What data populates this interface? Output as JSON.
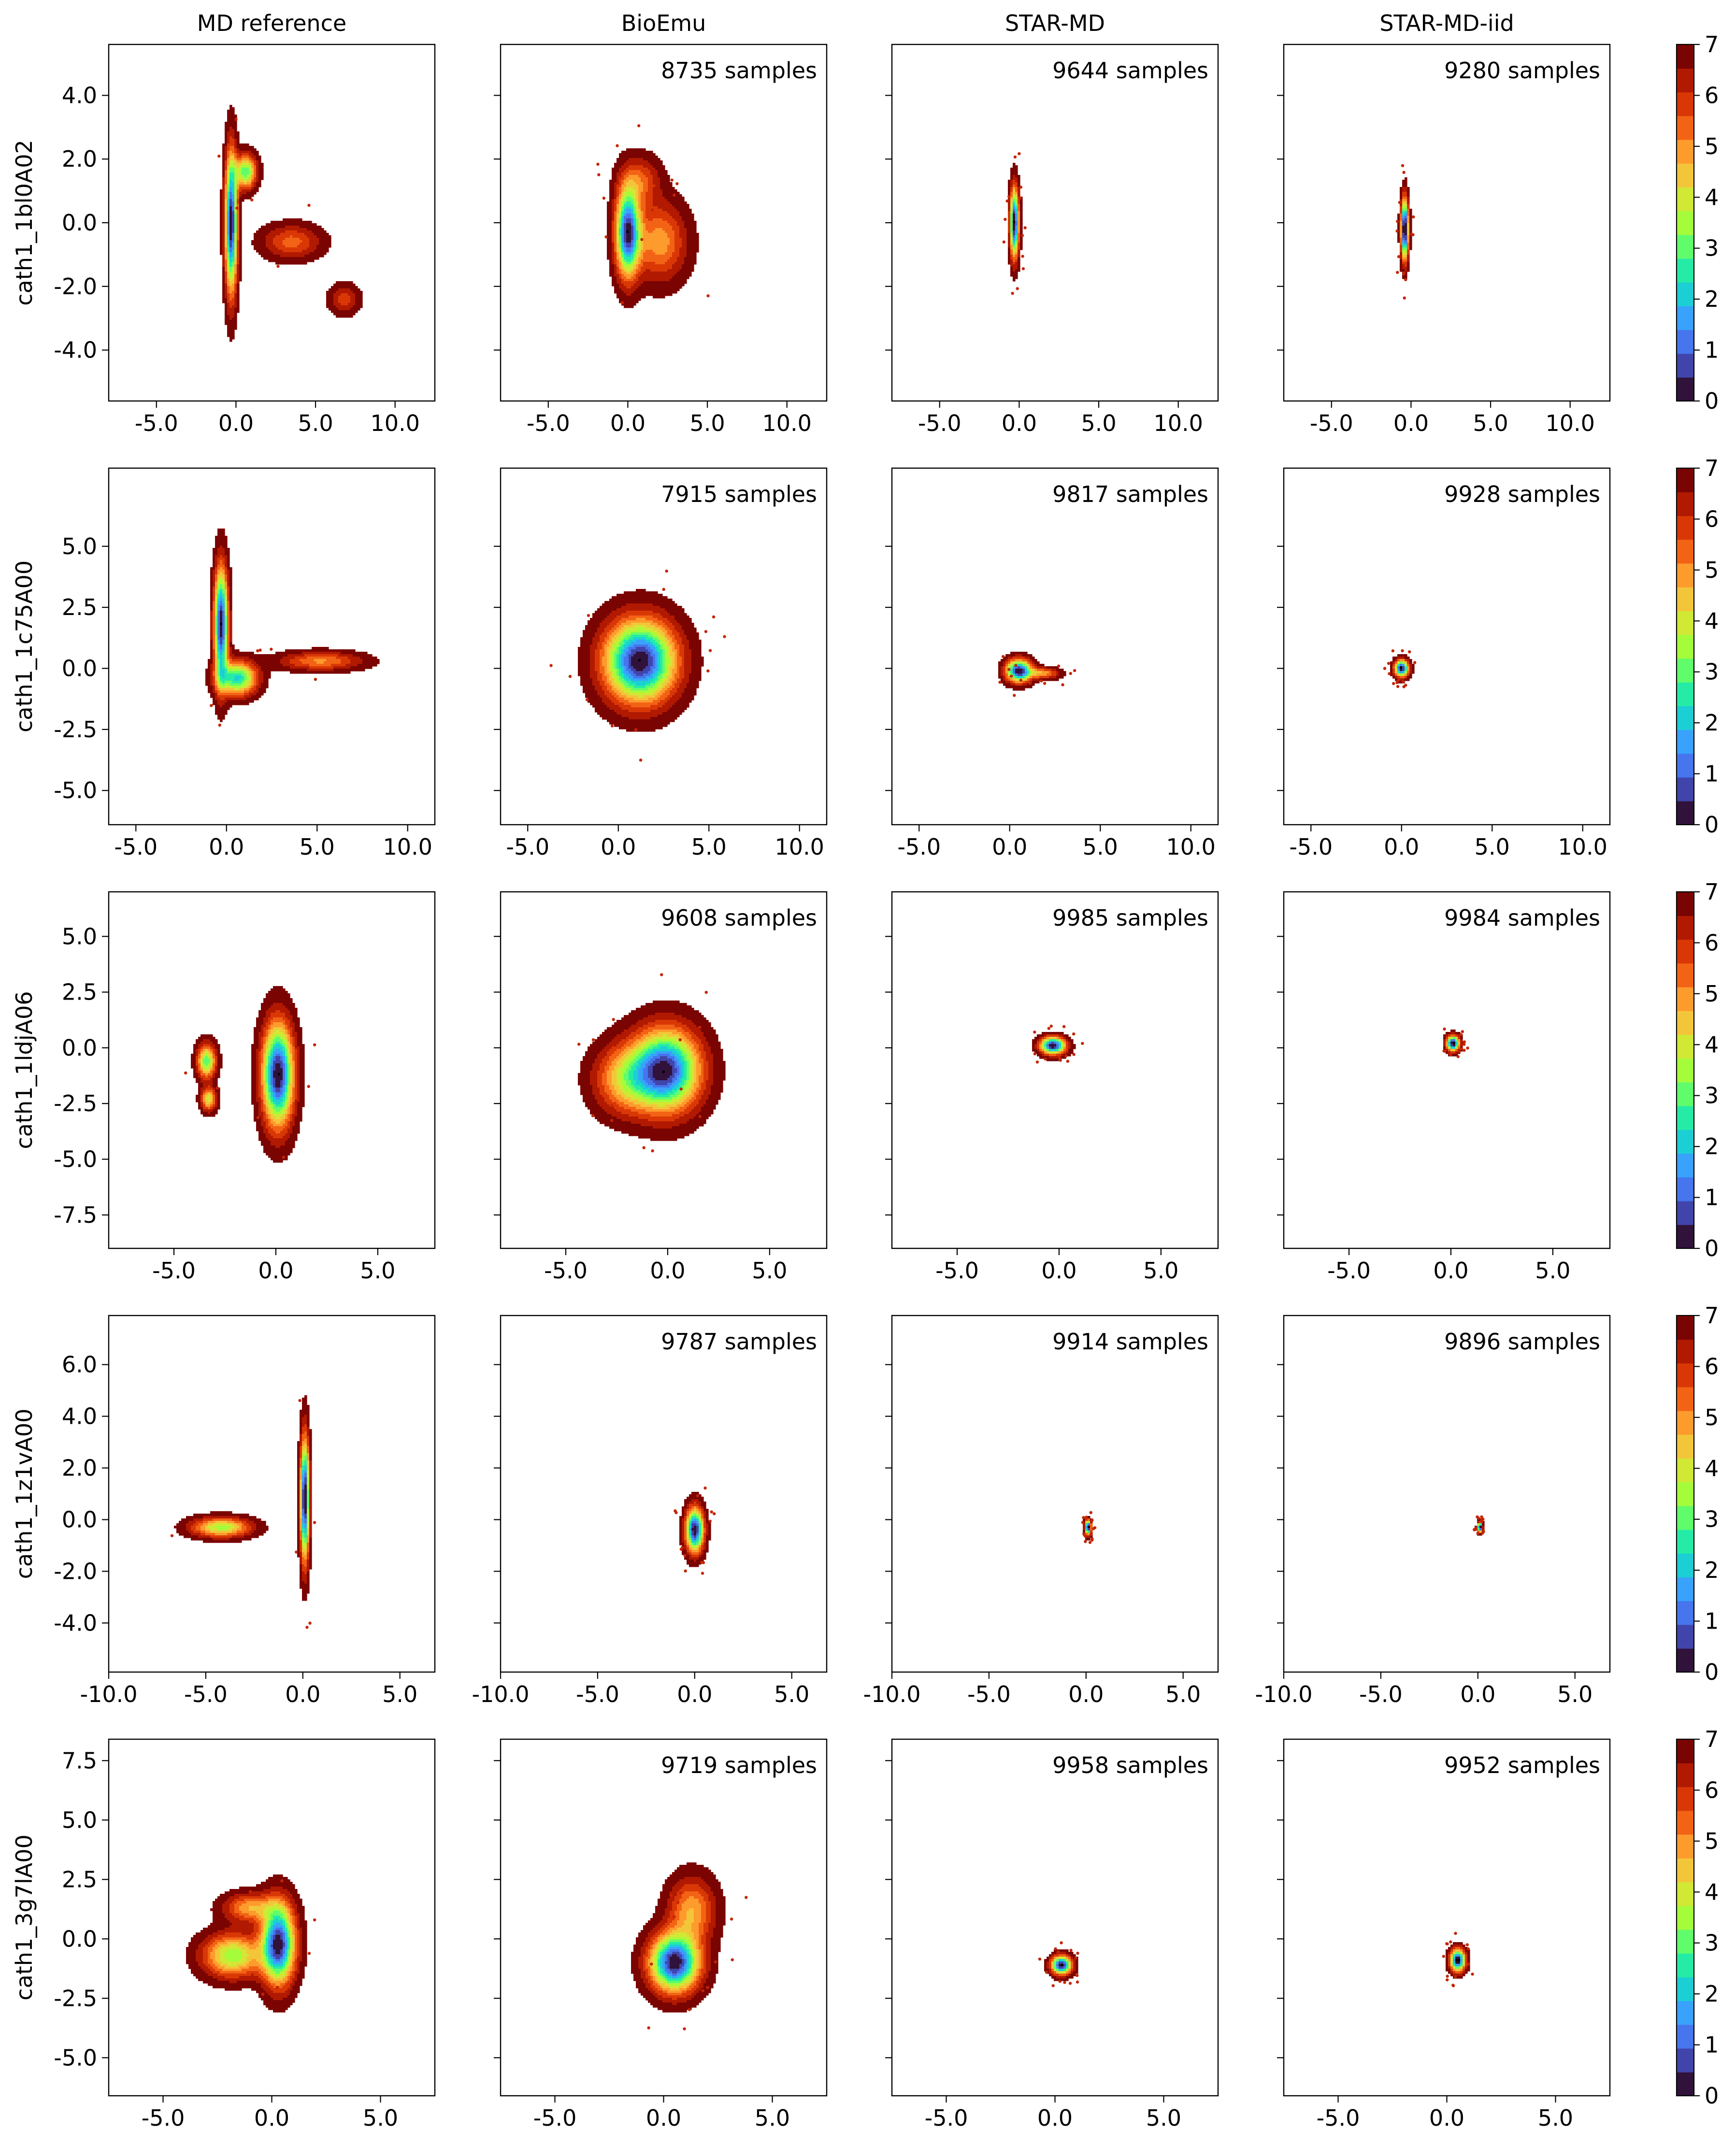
{
  "figure": {
    "columns": [
      "MD reference",
      "BioEmu",
      "STAR-MD",
      "STAR-MD-iid"
    ],
    "rows": [
      "cath1_1bl0A02",
      "cath1_1c75A00",
      "cath1_1ldjA06",
      "cath1_1z1vA00",
      "cath1_3g7lA00"
    ],
    "colorbar": {
      "ticks": [
        "0",
        "1",
        "2",
        "3",
        "4",
        "5",
        "6",
        "7"
      ],
      "levels": [
        "#30123b",
        "#4145ab",
        "#4675ed",
        "#39a2fc",
        "#1bcfd4",
        "#24eca6",
        "#61fc6c",
        "#a4fc3b",
        "#d1e834",
        "#f3c63a",
        "#fe9b2d",
        "#f36315",
        "#d93806",
        "#b11901",
        "#7a0402"
      ]
    }
  },
  "chart_data": [
    {
      "type": "contour",
      "title": "MD reference",
      "ylabel": "cath1_1bl0A02",
      "xlim": [
        -8,
        12.5
      ],
      "ylim": [
        -5.6,
        5.6
      ],
      "xticks": [
        "-5.0",
        "0.0",
        "5.0",
        "10.0"
      ],
      "yticks": [
        "4.0",
        "2.0",
        "0.0",
        "-2.0",
        "-4.0"
      ],
      "samples_label": "",
      "clusters": [
        {
          "x": -0.3,
          "y": 0.0,
          "sx": 0.25,
          "sy": 1.4,
          "w": 1.0
        },
        {
          "x": 0.6,
          "y": 1.6,
          "sx": 0.45,
          "sy": 0.35,
          "w": 0.6
        },
        {
          "x": 3.5,
          "y": -0.6,
          "sx": 1.2,
          "sy": 0.35,
          "w": 0.25
        },
        {
          "x": 6.8,
          "y": -2.4,
          "sx": 0.6,
          "sy": 0.3,
          "w": 0.2
        }
      ]
    },
    {
      "type": "contour",
      "title": "BioEmu",
      "ylabel": "",
      "xlim": [
        -8,
        12.5
      ],
      "ylim": [
        -5.6,
        5.6
      ],
      "xticks": [
        "-5.0",
        "0.0",
        "5.0",
        "10.0"
      ],
      "yticks": [],
      "samples_label": "8735 samples",
      "clusters": [
        {
          "x": 0.0,
          "y": -0.3,
          "sx": 0.5,
          "sy": 0.9,
          "w": 1.0
        },
        {
          "x": 2.0,
          "y": -0.6,
          "sx": 1.1,
          "sy": 0.8,
          "w": 0.35
        },
        {
          "x": 0.8,
          "y": 1.3,
          "sx": 0.8,
          "sy": 0.5,
          "w": 0.25
        }
      ]
    },
    {
      "type": "contour",
      "title": "STAR-MD",
      "ylabel": "",
      "xlim": [
        -8,
        12.5
      ],
      "ylim": [
        -5.6,
        5.6
      ],
      "xticks": [
        "-5.0",
        "0.0",
        "5.0",
        "10.0"
      ],
      "yticks": [],
      "samples_label": "9644 samples",
      "clusters": [
        {
          "x": -0.3,
          "y": 0.0,
          "sx": 0.18,
          "sy": 0.7,
          "w": 1.0
        }
      ]
    },
    {
      "type": "contour",
      "title": "STAR-MD-iid",
      "ylabel": "",
      "xlim": [
        -8,
        12.5
      ],
      "ylim": [
        -5.6,
        5.6
      ],
      "xticks": [
        "-5.0",
        "0.0",
        "5.0",
        "10.0"
      ],
      "yticks": [],
      "samples_label": "9280 samples",
      "clusters": [
        {
          "x": -0.4,
          "y": -0.2,
          "sx": 0.15,
          "sy": 0.6,
          "w": 1.0
        }
      ]
    },
    {
      "type": "contour",
      "title": "",
      "ylabel": "cath1_1c75A00",
      "xlim": [
        -6.5,
        11.5
      ],
      "ylim": [
        -6.4,
        8.2
      ],
      "xticks": [
        "-5.0",
        "0.0",
        "5.0",
        "10.0"
      ],
      "yticks": [
        "5.0",
        "2.5",
        "0.0",
        "-2.5",
        "-5.0"
      ],
      "samples_label": "",
      "clusters": [
        {
          "x": -0.3,
          "y": 1.8,
          "sx": 0.25,
          "sy": 1.5,
          "w": 1.0
        },
        {
          "x": 0.6,
          "y": -0.4,
          "sx": 0.7,
          "sy": 0.45,
          "w": 0.7
        },
        {
          "x": 5.2,
          "y": 0.3,
          "sx": 1.5,
          "sy": 0.25,
          "w": 0.3
        }
      ]
    },
    {
      "type": "contour",
      "title": "",
      "ylabel": "",
      "xlim": [
        -6.5,
        11.5
      ],
      "ylim": [
        -6.4,
        8.2
      ],
      "xticks": [
        "-5.0",
        "0.0",
        "5.0",
        "10.0"
      ],
      "yticks": [],
      "samples_label": "7915 samples",
      "clusters": [
        {
          "x": 1.2,
          "y": 0.3,
          "sx": 1.3,
          "sy": 1.1,
          "w": 1.0
        }
      ]
    },
    {
      "type": "contour",
      "title": "",
      "ylabel": "",
      "xlim": [
        -6.5,
        11.5
      ],
      "ylim": [
        -6.4,
        8.2
      ],
      "xticks": [
        "-5.0",
        "0.0",
        "5.0",
        "10.0"
      ],
      "yticks": [],
      "samples_label": "9817 samples",
      "clusters": [
        {
          "x": 0.5,
          "y": -0.1,
          "sx": 0.45,
          "sy": 0.3,
          "w": 1.0
        },
        {
          "x": 1.8,
          "y": -0.2,
          "sx": 0.6,
          "sy": 0.15,
          "w": 0.35
        }
      ]
    },
    {
      "type": "contour",
      "title": "",
      "ylabel": "",
      "xlim": [
        -6.5,
        11.5
      ],
      "ylim": [
        -6.4,
        8.2
      ],
      "xticks": [
        "-5.0",
        "0.0",
        "5.0",
        "10.0"
      ],
      "yticks": [],
      "samples_label": "9928 samples",
      "clusters": [
        {
          "x": 0.0,
          "y": 0.0,
          "sx": 0.25,
          "sy": 0.22,
          "w": 1.0
        }
      ]
    },
    {
      "type": "contour",
      "title": "",
      "ylabel": "cath1_1ldjA06",
      "xlim": [
        -8.2,
        7.8
      ],
      "ylim": [
        -9,
        7
      ],
      "xticks": [
        "-5.0",
        "0.0",
        "5.0"
      ],
      "yticks": [
        "5.0",
        "2.5",
        "0.0",
        "-2.5",
        "-5.0",
        "-7.5"
      ],
      "samples_label": "",
      "clusters": [
        {
          "x": 0.1,
          "y": -1.2,
          "sx": 0.5,
          "sy": 1.5,
          "w": 1.0
        },
        {
          "x": -3.4,
          "y": -0.6,
          "sx": 0.3,
          "sy": 0.5,
          "w": 0.6
        },
        {
          "x": -3.3,
          "y": -2.3,
          "sx": 0.25,
          "sy": 0.35,
          "w": 0.45
        }
      ]
    },
    {
      "type": "contour",
      "title": "",
      "ylabel": "",
      "xlim": [
        -8.2,
        7.8
      ],
      "ylim": [
        -9,
        7
      ],
      "xticks": [
        "-5.0",
        "0.0",
        "5.0"
      ],
      "yticks": [],
      "samples_label": "9608 samples",
      "clusters": [
        {
          "x": -0.1,
          "y": -1.0,
          "sx": 1.1,
          "sy": 1.2,
          "w": 1.0
        },
        {
          "x": -2.1,
          "y": -1.4,
          "sx": 1.0,
          "sy": 1.0,
          "w": 0.4
        }
      ]
    },
    {
      "type": "contour",
      "title": "",
      "ylabel": "",
      "xlim": [
        -8.2,
        7.8
      ],
      "ylim": [
        -9,
        7
      ],
      "xticks": [
        "-5.0",
        "0.0",
        "5.0"
      ],
      "yticks": [],
      "samples_label": "9985 samples",
      "clusters": [
        {
          "x": -0.3,
          "y": 0.1,
          "sx": 0.4,
          "sy": 0.25,
          "w": 1.0
        }
      ]
    },
    {
      "type": "contour",
      "title": "",
      "ylabel": "",
      "xlim": [
        -8.2,
        7.8
      ],
      "ylim": [
        -9,
        7
      ],
      "xticks": [
        "-5.0",
        "0.0",
        "5.0"
      ],
      "yticks": [],
      "samples_label": "9984 samples",
      "clusters": [
        {
          "x": 0.1,
          "y": 0.2,
          "sx": 0.2,
          "sy": 0.22,
          "w": 1.0
        }
      ]
    },
    {
      "type": "contour",
      "title": "",
      "ylabel": "cath1_1z1vA00",
      "xlim": [
        -10,
        6.8
      ],
      "ylim": [
        -5.9,
        7.9
      ],
      "xticks": [
        "-10.0",
        "-5.0",
        "0.0",
        "5.0"
      ],
      "yticks": [
        "6.0",
        "4.0",
        "2.0",
        "0.0",
        "-2.0",
        "-4.0"
      ],
      "samples_label": "",
      "clusters": [
        {
          "x": 0.1,
          "y": 0.8,
          "sx": 0.15,
          "sy": 1.5,
          "w": 1.0
        },
        {
          "x": -4.2,
          "y": -0.3,
          "sx": 1.0,
          "sy": 0.25,
          "w": 0.5
        }
      ]
    },
    {
      "type": "contour",
      "title": "",
      "ylabel": "",
      "xlim": [
        -10,
        6.8
      ],
      "ylim": [
        -5.9,
        7.9
      ],
      "xticks": [
        "-10.0",
        "-5.0",
        "0.0",
        "5.0"
      ],
      "yticks": [],
      "samples_label": "9787 samples",
      "clusters": [
        {
          "x": 0.0,
          "y": -0.4,
          "sx": 0.3,
          "sy": 0.55,
          "w": 1.0
        }
      ]
    },
    {
      "type": "contour",
      "title": "",
      "ylabel": "",
      "xlim": [
        -10,
        6.8
      ],
      "ylim": [
        -5.9,
        7.9
      ],
      "xticks": [
        "-10.0",
        "-5.0",
        "0.0",
        "5.0"
      ],
      "yticks": [],
      "samples_label": "9914 samples",
      "clusters": [
        {
          "x": 0.1,
          "y": -0.3,
          "sx": 0.1,
          "sy": 0.18,
          "w": 1.0
        }
      ]
    },
    {
      "type": "contour",
      "title": "",
      "ylabel": "",
      "xlim": [
        -10,
        6.8
      ],
      "ylim": [
        -5.9,
        7.9
      ],
      "xticks": [
        "-10.0",
        "-5.0",
        "0.0",
        "5.0"
      ],
      "yticks": [],
      "samples_label": "9896 samples",
      "clusters": [
        {
          "x": 0.1,
          "y": -0.3,
          "sx": 0.08,
          "sy": 0.12,
          "w": 1.0
        }
      ]
    },
    {
      "type": "contour",
      "title": "",
      "ylabel": "cath1_3g7lA00",
      "xlim": [
        -7.5,
        7.5
      ],
      "ylim": [
        -6.6,
        8.4
      ],
      "xticks": [
        "-5.0",
        "0.0",
        "5.0"
      ],
      "yticks": [
        "7.5",
        "5.0",
        "2.5",
        "0.0",
        "-2.5",
        "-5.0"
      ],
      "samples_label": "",
      "clusters": [
        {
          "x": 0.3,
          "y": -0.2,
          "sx": 0.5,
          "sy": 1.1,
          "w": 1.0
        },
        {
          "x": -1.8,
          "y": -0.7,
          "sx": 0.9,
          "sy": 0.6,
          "w": 0.55
        },
        {
          "x": -1.0,
          "y": 1.3,
          "sx": 0.8,
          "sy": 0.4,
          "w": 0.35
        }
      ]
    },
    {
      "type": "contour",
      "title": "",
      "ylabel": "",
      "xlim": [
        -7.5,
        7.5
      ],
      "ylim": [
        -6.6,
        8.4
      ],
      "xticks": [
        "-5.0",
        "0.0",
        "5.0"
      ],
      "yticks": [],
      "samples_label": "9719 samples",
      "clusters": [
        {
          "x": 0.5,
          "y": -1.0,
          "sx": 0.75,
          "sy": 0.8,
          "w": 1.0
        },
        {
          "x": 1.3,
          "y": 1.2,
          "sx": 0.7,
          "sy": 0.9,
          "w": 0.35
        }
      ]
    },
    {
      "type": "contour",
      "title": "",
      "ylabel": "",
      "xlim": [
        -7.5,
        7.5
      ],
      "ylim": [
        -6.6,
        8.4
      ],
      "xticks": [
        "-5.0",
        "0.0",
        "5.0"
      ],
      "yticks": [],
      "samples_label": "9958 samples",
      "clusters": [
        {
          "x": 0.3,
          "y": -1.1,
          "sx": 0.3,
          "sy": 0.25,
          "w": 1.0
        }
      ]
    },
    {
      "type": "contour",
      "title": "",
      "ylabel": "",
      "xlim": [
        -7.5,
        7.5
      ],
      "ylim": [
        -6.6,
        8.4
      ],
      "xticks": [
        "-5.0",
        "0.0",
        "5.0"
      ],
      "yticks": [],
      "samples_label": "9952 samples",
      "clusters": [
        {
          "x": 0.5,
          "y": -0.9,
          "sx": 0.22,
          "sy": 0.3,
          "w": 1.0
        }
      ]
    }
  ]
}
